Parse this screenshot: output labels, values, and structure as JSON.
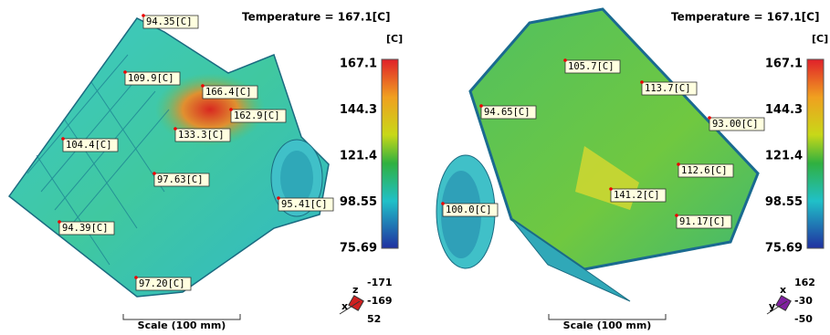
{
  "panels": [
    {
      "title": "Temperature = 167.1[C]",
      "unit": "[C]",
      "legend_ticks": [
        "167.1",
        "144.3",
        "121.4",
        "98.55",
        "75.69"
      ],
      "labels": [
        "94.35[C]",
        "109.9[C]",
        "166.4[C]",
        "162.9[C]",
        "133.3[C]",
        "104.4[C]",
        "97.63[C]",
        "95.41[C]",
        "94.39[C]",
        "97.20[C]"
      ],
      "orientation": {
        "axes": [
          "z",
          "x"
        ],
        "values": [
          "-171",
          "-169",
          "52"
        ]
      },
      "scale": "Scale (100 mm)"
    },
    {
      "title": "Temperature = 167.1[C]",
      "unit": "[C]",
      "legend_ticks": [
        "167.1",
        "144.3",
        "121.4",
        "98.55",
        "75.69"
      ],
      "labels": [
        "105.7[C]",
        "113.7[C]",
        "94.65[C]",
        "93.00[C]",
        "112.6[C]",
        "141.2[C]",
        "100.0[C]",
        "91.17[C]"
      ],
      "orientation": {
        "axes": [
          "x",
          "y"
        ],
        "values": [
          "162",
          "-30",
          "-50"
        ]
      },
      "scale": "Scale (100 mm)"
    }
  ]
}
